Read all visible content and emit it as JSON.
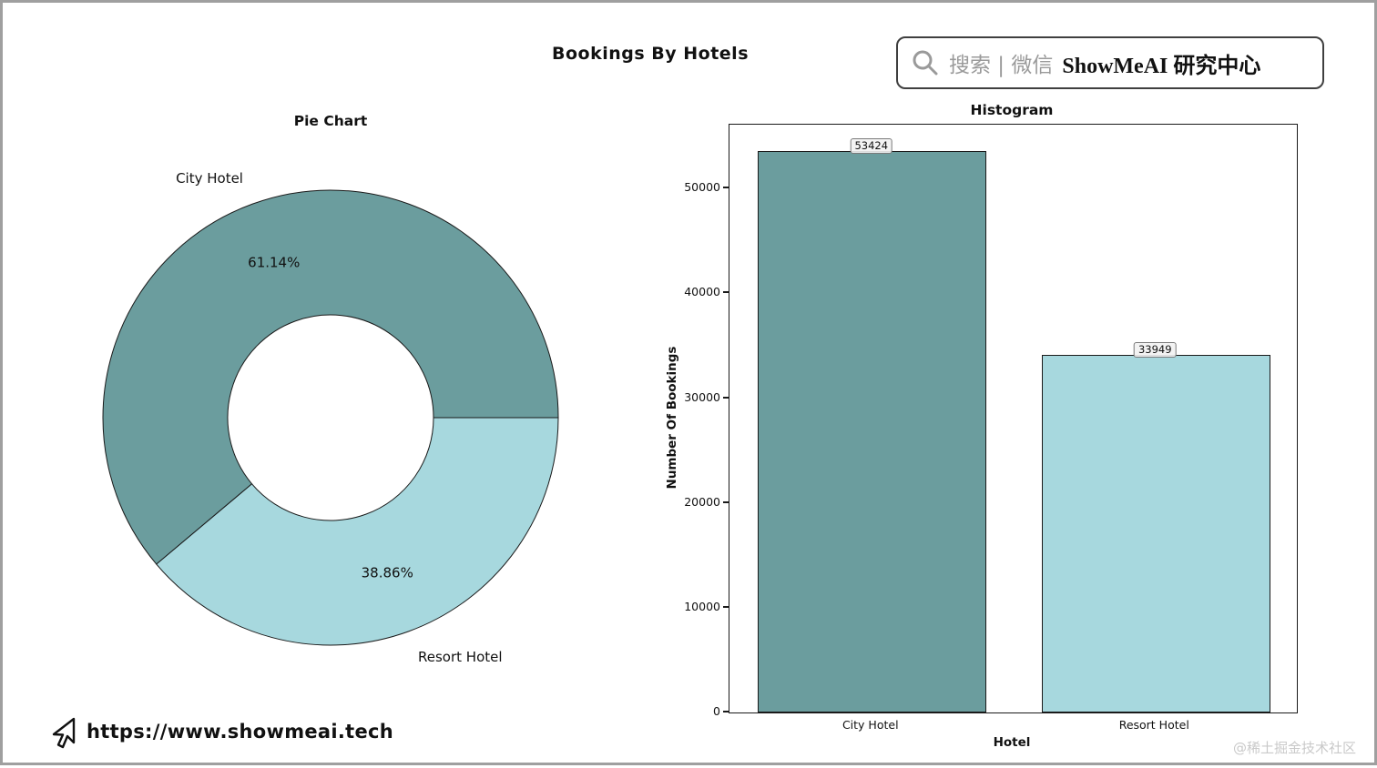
{
  "page": {
    "title": "Bookings By Hotels",
    "footer_url": "https://www.showmeai.tech",
    "watermark": "@稀土掘金技术社区"
  },
  "search": {
    "placeholder": "搜索 | 微信",
    "brand": "ShowMeAI 研究中心"
  },
  "chart_data": [
    {
      "type": "pie",
      "title": "Pie Chart",
      "labels": [
        "City Hotel",
        "Resort Hotel"
      ],
      "values": [
        61.14,
        38.86
      ],
      "value_labels": [
        "61.14%",
        "38.86%"
      ],
      "colors": [
        "#6b9d9e",
        "#a7d8de"
      ],
      "donut": true,
      "start_angle": 0,
      "direction": "counterclockwise"
    },
    {
      "type": "bar",
      "title": "Histogram",
      "categories": [
        "City Hotel",
        "Resort Hotel"
      ],
      "values": [
        53424,
        33949
      ],
      "colors": [
        "#6b9d9e",
        "#a7d8de"
      ],
      "xlabel": "Hotel",
      "ylabel": "Number Of Bookings",
      "ylim": [
        0,
        56100
      ],
      "yticks": [
        0,
        10000,
        20000,
        30000,
        40000,
        50000
      ]
    }
  ]
}
